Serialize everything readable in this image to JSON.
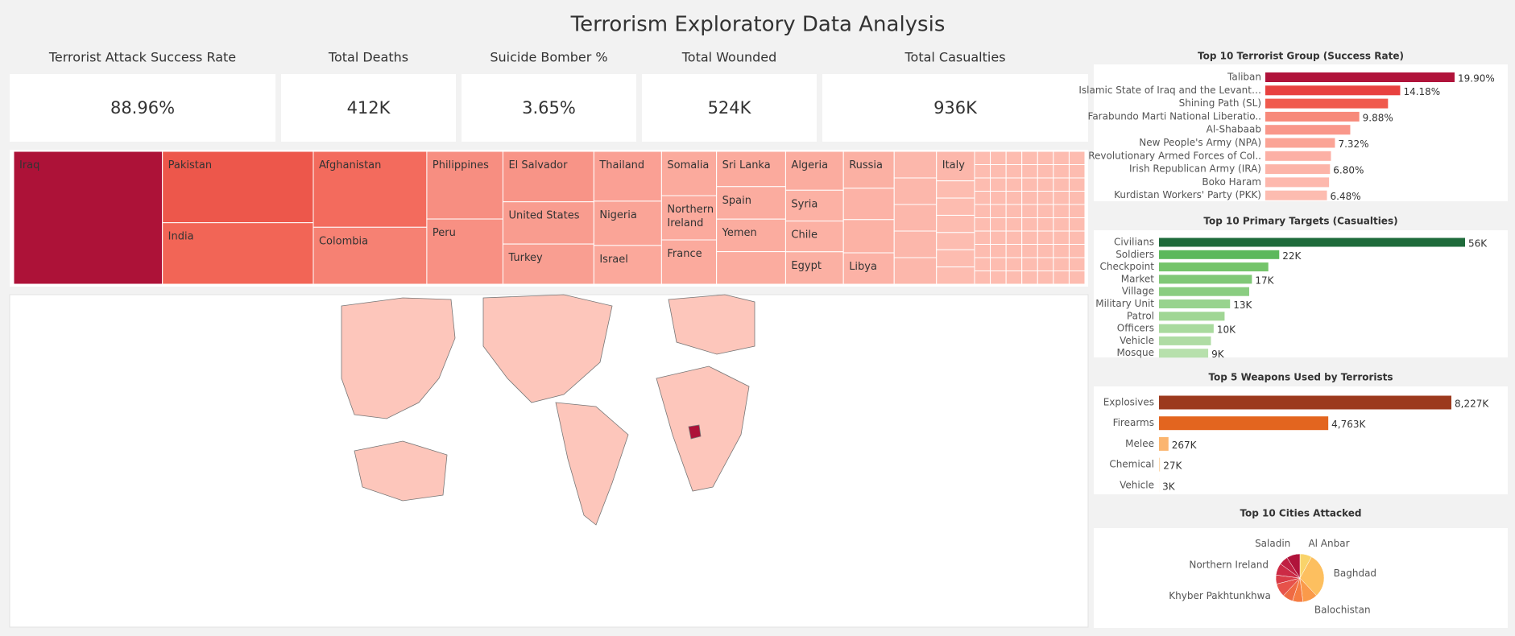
{
  "title": "Terrorism Exploratory Data Analysis",
  "kpis": [
    {
      "label": "Terrorist Attack Success Rate",
      "value": "88.96%"
    },
    {
      "label": "Total Deaths",
      "value": "412K"
    },
    {
      "label": "Suicide Bomber %",
      "value": "3.65%"
    },
    {
      "label": "Total Wounded",
      "value": "524K"
    },
    {
      "label": "Total Casualties",
      "value": "936K"
    }
  ],
  "chart_data": [
    {
      "type": "treemap",
      "categories": [
        "Iraq",
        "Pakistan",
        "India",
        "Afghanistan",
        "Colombia",
        "Philippines",
        "Peru",
        "El Salvador",
        "United States",
        "Turkey",
        "Thailand",
        "Nigeria",
        "Israel",
        "Somalia",
        "Northern\nIreland",
        "France",
        "Sri Lanka",
        "Spain",
        "Yemen",
        null,
        "Algeria",
        "Syria",
        "Chile",
        "Egypt",
        "Russia",
        null,
        null,
        "Libya",
        null,
        null,
        null,
        null,
        null,
        "Italy",
        null,
        null,
        null,
        null,
        null,
        null
      ],
      "values": [
        211,
        115,
        99,
        92,
        69,
        55,
        53,
        49,
        41,
        39,
        36,
        32,
        28,
        26,
        26,
        26,
        26,
        24,
        24,
        24,
        24,
        19,
        19,
        20,
        20,
        17,
        18,
        17,
        12,
        12,
        12,
        12,
        12,
        12,
        7,
        7,
        7,
        7,
        7,
        7
      ],
      "color_range": [
        "#fdbcb0",
        "#f15b4c",
        "#ad1238"
      ]
    },
    {
      "type": "bar",
      "orientation": "horizontal",
      "title": "Top 10 Terrorist Group (Success Rate)",
      "categories": [
        "Taliban",
        "Islamic State of Iraq and the Levant…",
        "Shining Path (SL)",
        "Farabundo Marti National Liberatio..",
        "Al-Shabaab",
        "New People's Army (NPA)",
        "Revolutionary Armed Forces of Col..",
        "Irish Republican Army (IRA)",
        "Boko Haram",
        "Kurdistan Workers' Party (PKK)"
      ],
      "values": [
        19.9,
        14.18,
        12.9,
        9.88,
        8.93,
        7.32,
        6.9,
        6.8,
        6.7,
        6.48
      ],
      "value_labels": [
        "19.90%",
        "14.18%",
        null,
        "9.88%",
        null,
        "7.32%",
        null,
        "6.80%",
        null,
        "6.48%"
      ],
      "colors": [
        "#b0133a",
        "#e8413f",
        "#f05a4d",
        "#f7897a",
        "#f9978a",
        "#fba496",
        "#fcb0a5",
        "#fcb4a8",
        "#fdb8ad",
        "#fdbcb0"
      ]
    },
    {
      "type": "bar",
      "orientation": "horizontal",
      "title": "Top 10 Primary Targets (Casualties)",
      "categories": [
        "Civilians",
        "Soldiers",
        "Checkpoint",
        "Market",
        "Village",
        "Military Unit",
        "Patrol",
        "Officers",
        "Vehicle",
        "Mosque"
      ],
      "values": [
        56000,
        22000,
        20000,
        17000,
        16500,
        13000,
        12000,
        10000,
        9500,
        9000
      ],
      "value_labels": [
        "56K",
        "22K",
        null,
        "17K",
        null,
        "13K",
        null,
        "10K",
        null,
        "9K"
      ],
      "colors": [
        "#1f6b3b",
        "#5cb85c",
        "#74c46a",
        "#80c877",
        "#8acd81",
        "#98d38e",
        "#a0d694",
        "#a9da9e",
        "#afdca4",
        "#b7e0ac"
      ]
    },
    {
      "type": "bar",
      "orientation": "horizontal",
      "title": "Top 5 Weapons Used by Terrorists",
      "categories": [
        "Explosives",
        "Firearms",
        "Melee",
        "Chemical",
        "Vehicle"
      ],
      "values": [
        8227000,
        4763000,
        267000,
        27000,
        3000
      ],
      "value_labels": [
        "8,227K",
        "4,763K",
        "267K",
        "27K",
        "3K"
      ],
      "colors": [
        "#9c3a1e",
        "#e3651f",
        "#fbb56f",
        "#fdd9b0",
        "#fde6cc"
      ]
    },
    {
      "type": "pie",
      "title": "Top 10 Cities Attacked",
      "categories": [
        "Al Anbar",
        "Baghdad",
        "Balochistan",
        null,
        null,
        "Khyber Pakhtunkhwa",
        null,
        "Northern Ireland",
        null,
        "Saladin"
      ],
      "values": [
        8,
        30,
        10,
        7,
        7,
        9,
        6,
        8,
        6,
        9
      ],
      "colors": [
        "#f9d36a",
        "#fdbf5f",
        "#fa9a4a",
        "#f57b42",
        "#ef6a43",
        "#e7524a",
        "#d93b47",
        "#cc2a45",
        "#c01f41",
        "#b0133a"
      ]
    }
  ]
}
